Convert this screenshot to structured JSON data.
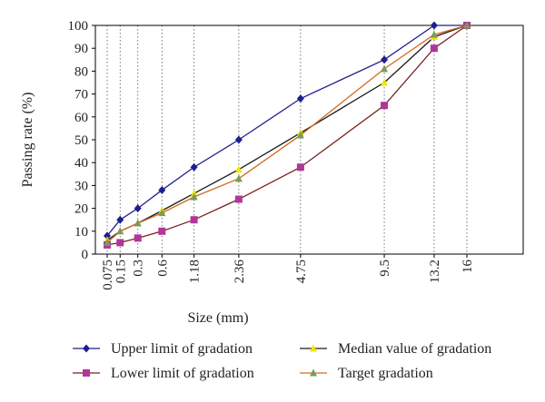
{
  "chart_data": {
    "type": "line",
    "xlabel": "Size (mm)",
    "ylabel": "Passing rate (%)",
    "ylim": [
      0,
      100
    ],
    "yticks": [
      0,
      10,
      20,
      30,
      40,
      50,
      60,
      70,
      80,
      90,
      100
    ],
    "x_scale": "power 0.45 (sieve sizes)",
    "x": [
      0.075,
      0.15,
      0.3,
      0.6,
      1.18,
      2.36,
      4.75,
      9.5,
      13.2,
      16
    ],
    "x_tick_labels": [
      "0.075",
      "0.15",
      "0.3",
      "0.6",
      "1.18",
      "2.36",
      "4.75",
      "9.5",
      "13.2",
      "16"
    ],
    "grid": "vertical dotted lines at each sieve size",
    "legend_position": "bottom",
    "series": [
      {
        "name": "Upper limit of gradation",
        "color": "#1f1f8f",
        "marker": "diamond",
        "values": [
          8,
          15,
          20,
          28,
          38,
          50,
          68,
          85,
          100,
          100
        ]
      },
      {
        "name": "Median value of gradation",
        "color": "#1a1a1a",
        "marker_color": "#f2e600",
        "marker": "triangle",
        "values": [
          6,
          10,
          13.5,
          19,
          26.5,
          37,
          53,
          75,
          95,
          100
        ]
      },
      {
        "name": "Lower limit of gradation",
        "color": "#7a1f1f",
        "marker_color": "#b0369a",
        "marker": "square",
        "values": [
          4,
          5,
          7,
          10,
          15,
          24,
          38,
          65,
          90,
          100
        ]
      },
      {
        "name": "Target gradation",
        "color": "#d2691e",
        "marker_color": "#7a9a5a",
        "marker": "triangle",
        "values": [
          5,
          10,
          13.5,
          18,
          25,
          33,
          52,
          81,
          96,
          100
        ]
      }
    ]
  }
}
